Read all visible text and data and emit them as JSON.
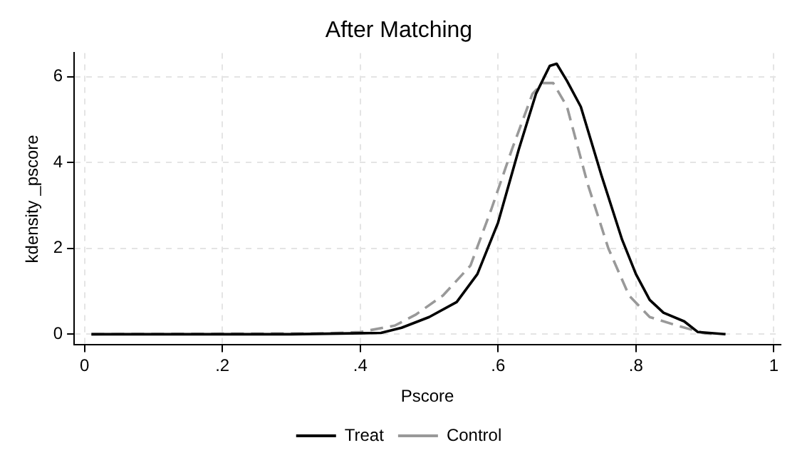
{
  "chart_data": {
    "type": "line",
    "title": "After Matching",
    "xlabel": "Pscore",
    "ylabel": "kdensity _pscore",
    "series": [
      {
        "name": "Treat",
        "color": "#000000",
        "line_style": "solid",
        "x": [
          0.01,
          0.3,
          0.43,
          0.46,
          0.5,
          0.54,
          0.57,
          0.6,
          0.63,
          0.655,
          0.675,
          0.685,
          0.7,
          0.72,
          0.75,
          0.78,
          0.8,
          0.82,
          0.84,
          0.87,
          0.89,
          0.93
        ],
        "values": [
          0,
          0,
          0.03,
          0.15,
          0.4,
          0.75,
          1.4,
          2.6,
          4.3,
          5.6,
          6.25,
          6.3,
          5.9,
          5.3,
          3.7,
          2.2,
          1.4,
          0.8,
          0.5,
          0.3,
          0.05,
          0
        ]
      },
      {
        "name": "Control",
        "color": "#999999",
        "line_style": "dashed",
        "x": [
          0.01,
          0.35,
          0.4,
          0.45,
          0.48,
          0.52,
          0.56,
          0.59,
          0.62,
          0.65,
          0.665,
          0.68,
          0.7,
          0.73,
          0.76,
          0.79,
          0.82,
          0.86,
          0.9,
          0.92
        ],
        "values": [
          0,
          0.02,
          0.05,
          0.2,
          0.45,
          0.9,
          1.6,
          2.9,
          4.3,
          5.6,
          5.85,
          5.85,
          5.3,
          3.5,
          2.0,
          0.9,
          0.4,
          0.2,
          0.02,
          0
        ]
      }
    ],
    "xlim": [
      -0.015,
      1.01
    ],
    "xticks": [
      0,
      {
        "value": 0.2,
        "label": ".2"
      },
      {
        "value": 0.4,
        "label": ".4"
      },
      {
        "value": 0.6,
        "label": ".6"
      },
      {
        "value": 0.8,
        "label": ".8"
      },
      1
    ],
    "ylim": [
      -0.25,
      6.55
    ],
    "yticks": [
      0,
      2,
      4,
      6
    ],
    "grid": true,
    "legend": "bottom",
    "marker": "none"
  }
}
